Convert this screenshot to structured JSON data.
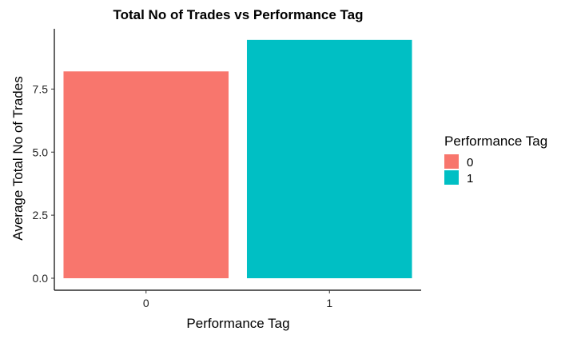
{
  "chart_data": {
    "type": "bar",
    "title": "Total No of Trades vs Performance Tag",
    "xlabel": "Performance Tag",
    "ylabel": "Average Total No of Trades",
    "categories": [
      "0",
      "1"
    ],
    "values": [
      8.2,
      9.45
    ],
    "colors": [
      "#F8766D",
      "#00BFC4"
    ],
    "ylim": [
      0,
      10
    ],
    "yticks": [
      0.0,
      2.5,
      5.0,
      7.5
    ],
    "ytick_labels": [
      "0.0",
      "2.5",
      "5.0",
      "7.5"
    ],
    "grid": false,
    "legend": {
      "title": "Performance Tag",
      "position": "right",
      "entries": [
        {
          "label": "0",
          "color": "#F8766D"
        },
        {
          "label": "1",
          "color": "#00BFC4"
        }
      ]
    }
  }
}
